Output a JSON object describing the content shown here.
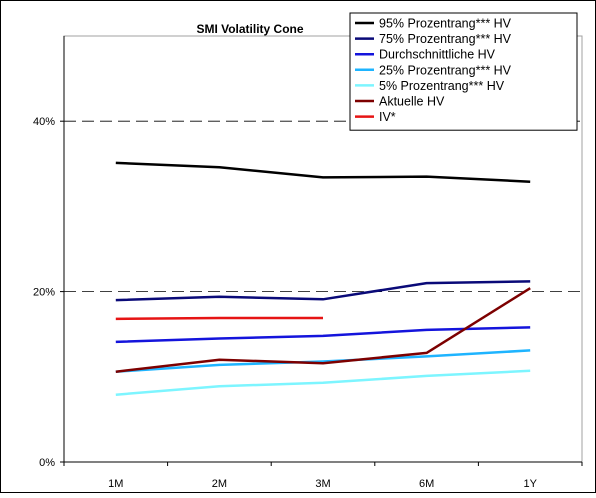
{
  "chart_data": {
    "type": "line",
    "title": "SMI Volatility Cone",
    "categories": [
      "1M",
      "2M",
      "3M",
      "6M",
      "1Y"
    ],
    "ylim": [
      0,
      0.5
    ],
    "yticks": [
      {
        "value": 0,
        "label": "0%"
      },
      {
        "value": 0.2,
        "label": "20%"
      },
      {
        "value": 0.4,
        "label": "40%"
      }
    ],
    "grid": "dashed lines at 20% and 40%",
    "legend_position": "top-right",
    "series": [
      {
        "name": "95% Prozentrang*** HV",
        "color": "#000000",
        "values": [
          0.351,
          0.346,
          0.334,
          0.335,
          0.329
        ]
      },
      {
        "name": "75% Prozentrang*** HV",
        "color": "#0a0a78",
        "values": [
          0.19,
          0.194,
          0.191,
          0.21,
          0.212
        ]
      },
      {
        "name": "Durchschnittliche HV",
        "color": "#1414dc",
        "values": [
          0.141,
          0.145,
          0.148,
          0.155,
          0.158
        ]
      },
      {
        "name": "25% Prozentrang*** HV",
        "color": "#1eb4ff",
        "values": [
          0.106,
          0.114,
          0.118,
          0.124,
          0.131
        ]
      },
      {
        "name": "5% Prozentrang*** HV",
        "color": "#7df5ff",
        "values": [
          0.079,
          0.089,
          0.093,
          0.101,
          0.107
        ]
      },
      {
        "name": "Aktuelle HV",
        "color": "#7d0000",
        "values": [
          0.106,
          0.12,
          0.116,
          0.128,
          0.204
        ]
      },
      {
        "name": "IV*",
        "color": "#e61414",
        "values": [
          0.168,
          0.169,
          0.169,
          null,
          null
        ]
      }
    ]
  }
}
